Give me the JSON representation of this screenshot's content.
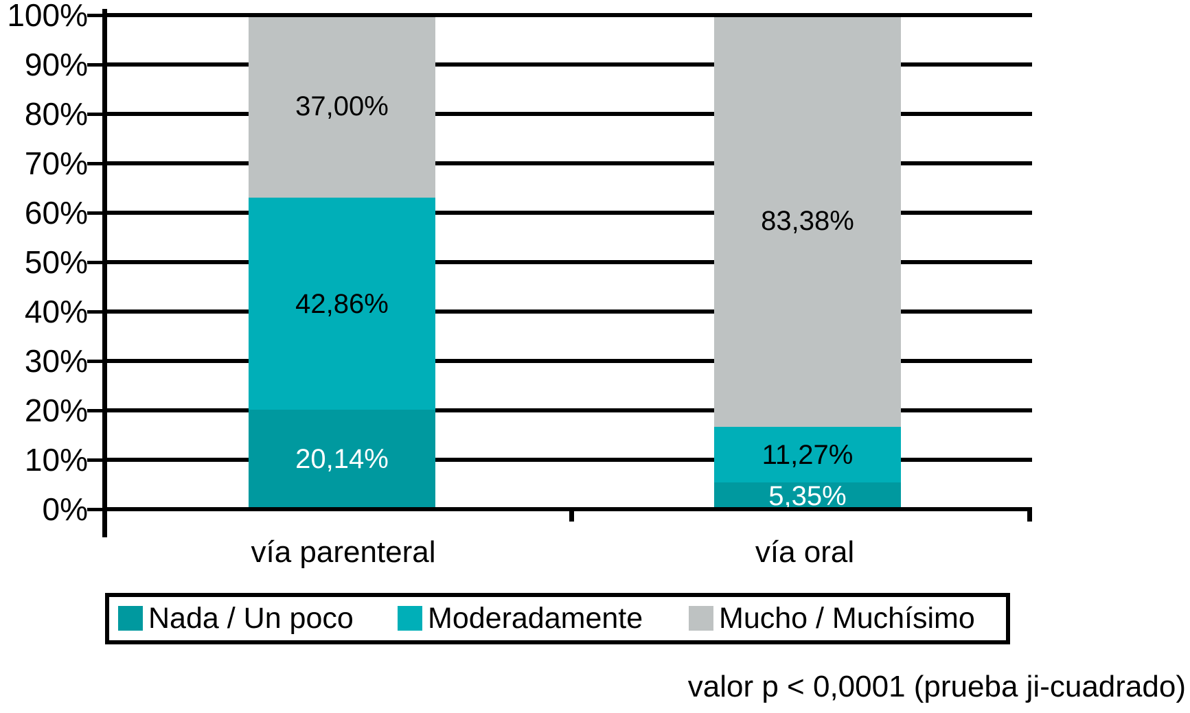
{
  "figure": {
    "background": "#FFFFFF",
    "footnote": "valor p < 0,0001 (prueba ji-cuadrado)"
  },
  "chart_data": {
    "type": "bar",
    "stacked": true,
    "title": "",
    "categories": [
      "vía parenteral",
      "vía oral"
    ],
    "series": [
      {
        "name": "Nada / Un poco",
        "color": "#00999F",
        "label_color": "#FFFFFF",
        "values": [
          20.14,
          5.35
        ],
        "data_labels": [
          "20,14%",
          "5,35%"
        ]
      },
      {
        "name": "Moderadamente",
        "color": "#00AFB8",
        "label_color": "#000000",
        "values": [
          42.86,
          11.27
        ],
        "data_labels": [
          "42,86%",
          "11,27%"
        ]
      },
      {
        "name": "Mucho / Muchísimo",
        "color": "#BEC2C2",
        "label_color": "#000000",
        "values": [
          37.0,
          83.38
        ],
        "data_labels": [
          "37,00%",
          "83,38%"
        ]
      }
    ],
    "y_axis": {
      "min": 0,
      "max": 100,
      "tick_labels": [
        "0%",
        "10%",
        "20%",
        "30%",
        "40%",
        "50%",
        "60%",
        "70%",
        "80%",
        "90%",
        "100%"
      ],
      "grid": true
    },
    "legend": {
      "position": "bottom",
      "entries": [
        "Nada / Un poco",
        "Moderadamente",
        "Mucho / Muchísimo"
      ]
    },
    "annotations": [
      "valor p < 0,0001 (prueba ji-cuadrado)"
    ]
  }
}
